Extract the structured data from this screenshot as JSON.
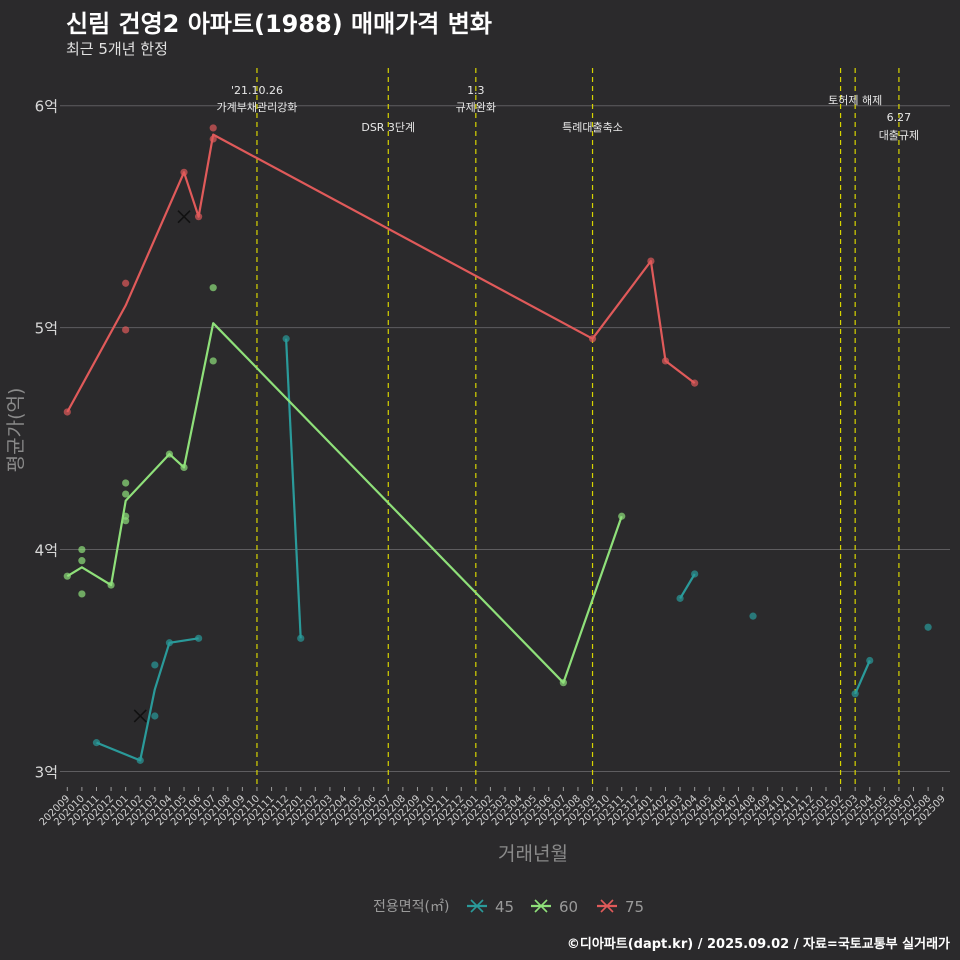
{
  "title": "신림 건영2 아파트(1988) 매매가격 변화",
  "subtitle": "최근 5개년 한정",
  "caption": "©디아파트(dapt.kr) / 2025.09.02 / 자료=국토교통부 실거래가",
  "chart_data": {
    "type": "line",
    "xlabel": "거래년월",
    "ylabel": "평균가(억)",
    "ylim": [
      2.93,
      6.17
    ],
    "yticks": [
      3,
      4,
      5,
      6
    ],
    "ytick_labels": [
      "3억",
      "4억",
      "5억",
      "6억"
    ],
    "x": [
      "202009",
      "202010",
      "202011",
      "202012",
      "202101",
      "202102",
      "202103",
      "202104",
      "202105",
      "202106",
      "202107",
      "202108",
      "202109",
      "202110",
      "202111",
      "202112",
      "202201",
      "202202",
      "202203",
      "202204",
      "202205",
      "202206",
      "202207",
      "202208",
      "202209",
      "202210",
      "202211",
      "202212",
      "202301",
      "202302",
      "202303",
      "202304",
      "202305",
      "202306",
      "202307",
      "202308",
      "202309",
      "202310",
      "202311",
      "202312",
      "202401",
      "202402",
      "202403",
      "202404",
      "202405",
      "202406",
      "202407",
      "202408",
      "202409",
      "202410",
      "202411",
      "202412",
      "202501",
      "202502",
      "202503",
      "202504",
      "202505",
      "202506",
      "202507",
      "202508",
      "202509"
    ],
    "x_tick_labels": [
      "202009",
      "202010",
      "202011",
      "202012",
      "202101",
      "202102",
      "202103",
      "202104",
      "202105",
      "202106",
      "202107",
      "202108",
      "202109",
      "202110",
      "202111",
      "202112",
      "202201",
      "202202",
      "202203",
      "202204",
      "202205",
      "202206",
      "202207",
      "202208",
      "202209",
      "202210",
      "202211",
      "202212",
      "202301",
      "202302",
      "202303",
      "202304",
      "202305",
      "202306",
      "202307",
      "202308",
      "202309",
      "202310",
      "202311",
      "202312",
      "202401",
      "202402",
      "202403",
      "202404",
      "202405",
      "202406",
      "202407",
      "202408",
      "202409",
      "202410",
      "202411",
      "202412",
      "202501",
      "202502",
      "202503",
      "202504",
      "202505",
      "202506",
      "202507",
      "202508",
      "202509"
    ],
    "grid": true,
    "legend": {
      "title": "전용면적(㎡)",
      "position": "bottom",
      "entries": [
        "45",
        "60",
        "75"
      ]
    },
    "series": [
      {
        "name": "45",
        "color": "#2a9a9a",
        "line": [
          [
            "202011",
            3.13
          ],
          [
            "202102",
            3.05
          ],
          [
            "202103",
            3.37
          ],
          [
            "202104",
            3.58
          ],
          [
            "202106",
            3.6
          ]
        ],
        "line2": [
          [
            "202112",
            4.95
          ],
          [
            "202201",
            3.6
          ]
        ],
        "line3": [
          [
            "202403",
            3.78
          ],
          [
            "202404",
            3.89
          ]
        ],
        "line4": [
          [
            "202503",
            3.35
          ],
          [
            "202504",
            3.5
          ]
        ],
        "points": [
          [
            "202011",
            3.13
          ],
          [
            "202102",
            3.05
          ],
          [
            "202103",
            3.48
          ],
          [
            "202103",
            3.25
          ],
          [
            "202104",
            3.58
          ],
          [
            "202106",
            3.6
          ],
          [
            "202112",
            4.95
          ],
          [
            "202201",
            3.6
          ],
          [
            "202403",
            3.78
          ],
          [
            "202404",
            3.89
          ],
          [
            "202408",
            3.7
          ],
          [
            "202503",
            3.35
          ],
          [
            "202504",
            3.5
          ],
          [
            "202508",
            3.65
          ]
        ],
        "marker": [
          "202102",
          3.25
        ]
      },
      {
        "name": "60",
        "color": "#8fe07a",
        "line": [
          [
            "202009",
            3.88
          ],
          [
            "202010",
            3.92
          ],
          [
            "202012",
            3.84
          ],
          [
            "202101",
            4.22
          ],
          [
            "202104",
            4.43
          ],
          [
            "202105",
            4.37
          ],
          [
            "202107",
            5.02
          ],
          [
            "202307",
            3.4
          ],
          [
            "202311",
            4.15
          ]
        ],
        "points": [
          [
            "202009",
            3.88
          ],
          [
            "202010",
            4.0
          ],
          [
            "202010",
            3.95
          ],
          [
            "202010",
            3.8
          ],
          [
            "202012",
            3.84
          ],
          [
            "202101",
            4.3
          ],
          [
            "202101",
            4.25
          ],
          [
            "202101",
            4.15
          ],
          [
            "202101",
            4.13
          ],
          [
            "202104",
            4.43
          ],
          [
            "202105",
            4.37
          ],
          [
            "202107",
            5.18
          ],
          [
            "202107",
            4.85
          ],
          [
            "202307",
            3.4
          ],
          [
            "202311",
            4.15
          ]
        ]
      },
      {
        "name": "75",
        "color": "#e05a5a",
        "line": [
          [
            "202009",
            4.62
          ],
          [
            "202101",
            5.1
          ],
          [
            "202105",
            5.7
          ],
          [
            "202106",
            5.5
          ],
          [
            "202107",
            5.87
          ],
          [
            "202309",
            4.95
          ],
          [
            "202401",
            5.3
          ],
          [
            "202402",
            4.85
          ],
          [
            "202404",
            4.75
          ]
        ],
        "points": [
          [
            "202009",
            4.62
          ],
          [
            "202101",
            5.2
          ],
          [
            "202101",
            4.99
          ],
          [
            "202105",
            5.7
          ],
          [
            "202106",
            5.5
          ],
          [
            "202107",
            5.9
          ],
          [
            "202107",
            5.85
          ],
          [
            "202309",
            4.95
          ],
          [
            "202401",
            5.3
          ],
          [
            "202402",
            4.85
          ],
          [
            "202404",
            4.75
          ]
        ],
        "marker": [
          "202105",
          5.5
        ]
      }
    ],
    "annotations": [
      {
        "x": "202110",
        "label_top": "'21.10.26",
        "label_bottom": "가계부채관리강화",
        "level": 1
      },
      {
        "x": "202207",
        "label_top": "",
        "label_bottom": "DSR 3단계",
        "level": 2
      },
      {
        "x": "202301",
        "label_top": "1.3",
        "label_bottom": "규제완화",
        "level": 1
      },
      {
        "x": "202309",
        "label_top": "",
        "label_bottom": "특례대출축소",
        "level": 2
      },
      {
        "x": "202502",
        "label_top": "",
        "label_bottom": "",
        "level": 0
      },
      {
        "x": "202503",
        "label_top": "",
        "label_bottom": "토허제 해제",
        "level": 0
      },
      {
        "x": "202506",
        "label_top": "6.27",
        "label_bottom": "대출규제",
        "level": 3
      }
    ]
  }
}
